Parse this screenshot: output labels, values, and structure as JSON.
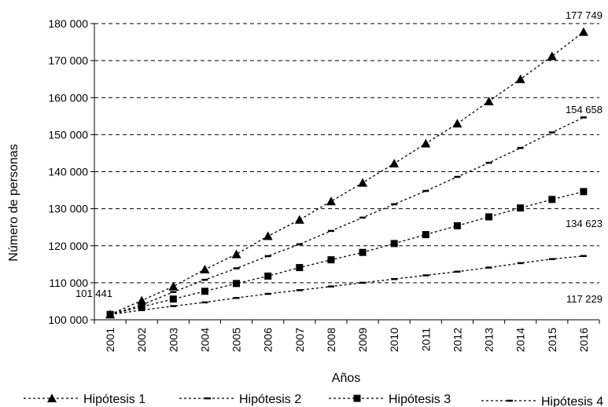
{
  "chart_data": {
    "type": "line",
    "title": "",
    "xlabel": "Años",
    "ylabel": "Número de personas",
    "ylim": [
      100000,
      180000
    ],
    "ytick_values": [
      100000,
      110000,
      120000,
      130000,
      140000,
      150000,
      160000,
      170000,
      180000
    ],
    "ytick_labels": [
      "100 000",
      "110 000",
      "120 000",
      "130 000",
      "140 000",
      "150 000",
      "160 000",
      "170 000",
      "180 000"
    ],
    "categories": [
      "2001",
      "2002",
      "2003",
      "2004",
      "2005",
      "2006",
      "2007",
      "2008",
      "2009",
      "2010",
      "2011",
      "2012",
      "2013",
      "2014",
      "2015",
      "2016"
    ],
    "grid": "horizontal dashed",
    "legend_position": "bottom",
    "series": [
      {
        "name": "Hipótesis 1",
        "marker": "triangle",
        "values": [
          101441,
          105200,
          109000,
          113600,
          117700,
          122600,
          127000,
          132000,
          137000,
          142200,
          147600,
          153000,
          159000,
          165000,
          171200,
          177749
        ]
      },
      {
        "name": "Hipótesis 2",
        "marker": "dash",
        "values": [
          101441,
          104000,
          107500,
          110800,
          113900,
          117200,
          120400,
          124000,
          127600,
          131200,
          134800,
          138600,
          142400,
          146400,
          150600,
          154658
        ]
      },
      {
        "name": "Hipótesis 3",
        "marker": "square",
        "values": [
          101441,
          103500,
          105600,
          107700,
          109800,
          111800,
          114100,
          116200,
          118200,
          120600,
          123000,
          125400,
          127800,
          130200,
          132500,
          134623
        ]
      },
      {
        "name": "Hipótesis 4",
        "marker": "dash",
        "values": [
          101441,
          102600,
          103700,
          104700,
          105900,
          107000,
          108000,
          109000,
          110000,
          111000,
          112000,
          113000,
          114100,
          115300,
          116400,
          117229
        ]
      }
    ],
    "annotations": [
      "101 441",
      "177 749",
      "154 658",
      "134 623",
      "117 229"
    ]
  },
  "colors": {
    "line": "#000000",
    "grid": "#000000",
    "background": "#ffffff"
  }
}
